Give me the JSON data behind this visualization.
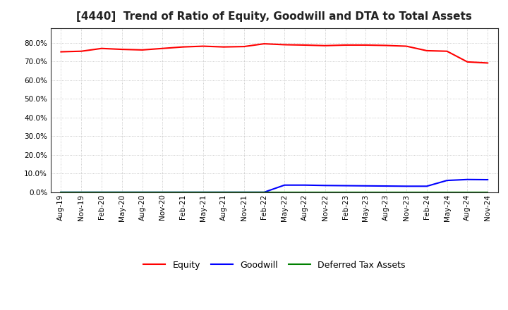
{
  "title": "[4440]  Trend of Ratio of Equity, Goodwill and DTA to Total Assets",
  "ylim": [
    0.0,
    0.88
  ],
  "yticks": [
    0.0,
    0.1,
    0.2,
    0.3,
    0.4,
    0.5,
    0.6,
    0.7,
    0.8
  ],
  "xtick_labels": [
    "Aug-19",
    "Nov-19",
    "Feb-20",
    "May-20",
    "Aug-20",
    "Nov-20",
    "Feb-21",
    "May-21",
    "Aug-21",
    "Nov-21",
    "Feb-22",
    "May-22",
    "Aug-22",
    "Nov-22",
    "Feb-23",
    "May-23",
    "Aug-23",
    "Nov-23",
    "Feb-24",
    "May-24",
    "Aug-24",
    "Nov-24"
  ],
  "equity": [
    0.752,
    0.755,
    0.77,
    0.765,
    0.762,
    0.77,
    0.778,
    0.782,
    0.778,
    0.78,
    0.795,
    0.79,
    0.788,
    0.785,
    0.788,
    0.788,
    0.786,
    0.782,
    0.758,
    0.755,
    0.698,
    0.692
  ],
  "goodwill": [
    0.0,
    0.0,
    0.0,
    0.0,
    0.0,
    0.0,
    0.0,
    0.0,
    0.0,
    0.0,
    0.0,
    0.038,
    0.038,
    0.036,
    0.035,
    0.034,
    0.033,
    0.032,
    0.032,
    0.063,
    0.068,
    0.067
  ],
  "dta": [
    0.0,
    0.0,
    0.0,
    0.0,
    0.0,
    0.0,
    0.0,
    0.0,
    0.0,
    0.0,
    0.0,
    0.0,
    0.0,
    0.0,
    0.0,
    0.0,
    0.0,
    0.0,
    0.0,
    0.0,
    0.0,
    0.0
  ],
  "equity_color": "#ff0000",
  "goodwill_color": "#0000ff",
  "dta_color": "#008000",
  "background_color": "#ffffff",
  "grid_color": "#bbbbbb",
  "legend_labels": [
    "Equity",
    "Goodwill",
    "Deferred Tax Assets"
  ],
  "title_fontsize": 11,
  "tick_fontsize": 7.5
}
